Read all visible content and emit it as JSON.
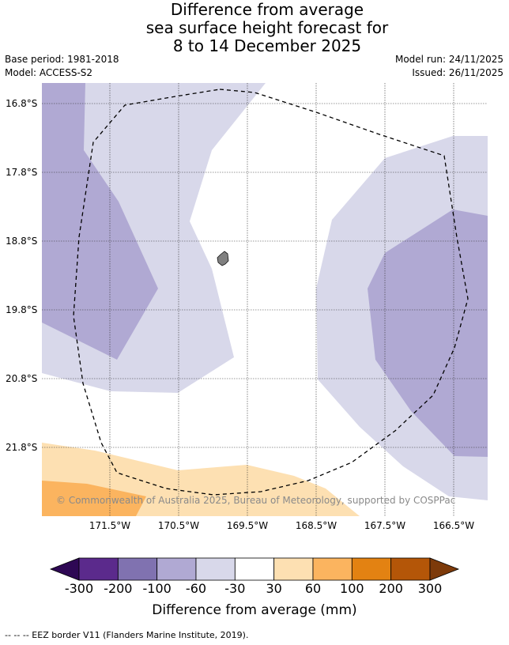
{
  "title": {
    "line1": "Difference from average",
    "line2": "sea surface height forecast for",
    "line3": "8 to 14 December 2025"
  },
  "meta": {
    "base_period": "Base period: 1981-2018",
    "model": "Model: ACCESS-S2",
    "model_run": "Model run: 24/11/2025",
    "issued": "Issued: 26/11/2025"
  },
  "map": {
    "lat_labels": [
      "16.8°S",
      "17.8°S",
      "18.8°S",
      "19.8°S",
      "20.8°S",
      "21.8°S"
    ],
    "lon_labels": [
      "171.5°W",
      "170.5°W",
      "169.5°W",
      "168.5°W",
      "167.5°W",
      "166.5°W"
    ],
    "copyright": "© Commonwealth of Australia 2025, Bureau of Meteorology, supported by COSPPac"
  },
  "colorbar": {
    "title": "Difference from average (mm)",
    "ticks": [
      "-300",
      "-200",
      "-100",
      "-60",
      "-30",
      "30",
      "60",
      "100",
      "200",
      "300"
    ],
    "colors": {
      "under": "#2e0854",
      "bins": [
        "#5b2a8c",
        "#8072b0",
        "#b0a9d3",
        "#d8d8ea",
        "#ffffff",
        "#fde0b2",
        "#fbb45f",
        "#e38212",
        "#b45608"
      ],
      "over": "#7d3a0a"
    }
  },
  "footnote": "-- -- -- EEZ border V11 (Flanders Marine Institute, 2019)."
}
